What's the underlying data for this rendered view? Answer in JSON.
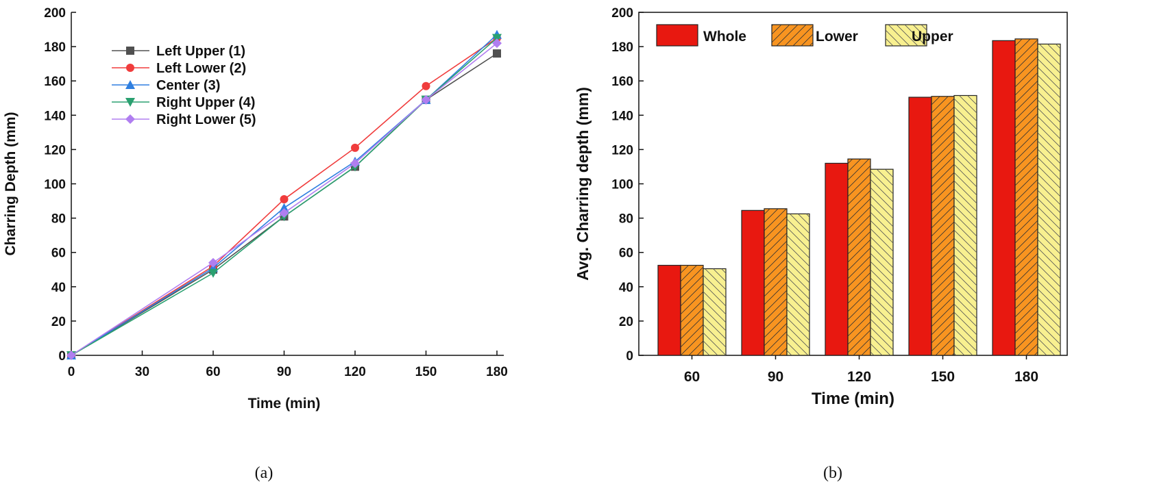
{
  "chart_data": [
    {
      "type": "line",
      "caption": "(a)",
      "xlabel": "Time (min)",
      "ylabel": "Charring Depth (mm)",
      "xlim": [
        0,
        180
      ],
      "ylim": [
        0,
        200
      ],
      "xticks": [
        0,
        30,
        60,
        90,
        120,
        150,
        180
      ],
      "yticks": [
        0,
        20,
        40,
        60,
        80,
        100,
        120,
        140,
        160,
        180,
        200
      ],
      "legend_position": "top-left",
      "x": [
        0,
        60,
        90,
        120,
        150,
        180
      ],
      "series": [
        {
          "name": "Left Upper (1)",
          "color": "#505050",
          "marker": "square",
          "values": [
            0,
            50,
            81,
            110,
            149,
            176
          ]
        },
        {
          "name": "Left  Lower (2)",
          "color": "#f03c3c",
          "marker": "circle",
          "values": [
            0,
            52,
            91,
            121,
            157,
            185
          ]
        },
        {
          "name": "Center (3)",
          "color": "#2f7fe0",
          "marker": "triangle-up",
          "values": [
            0,
            51,
            86,
            113,
            149,
            187
          ]
        },
        {
          "name": "Right Upper (4)",
          "color": "#2aa070",
          "marker": "triangle-down",
          "values": [
            0,
            48,
            81,
            110,
            149,
            185
          ]
        },
        {
          "name": "Right Lower (5)",
          "color": "#b07ef0",
          "marker": "diamond",
          "values": [
            0,
            54,
            83,
            112,
            149,
            182
          ]
        }
      ]
    },
    {
      "type": "bar",
      "caption": "(b)",
      "xlabel": "Time (min)",
      "ylabel": "Avg. Charring depth (mm)",
      "ylim": [
        0,
        200
      ],
      "yticks": [
        0,
        20,
        40,
        60,
        80,
        100,
        120,
        140,
        160,
        180,
        200
      ],
      "legend_position": "top-left",
      "categories": [
        "60",
        "90",
        "120",
        "150",
        "180"
      ],
      "series": [
        {
          "name": "Whole",
          "color": "#e81810",
          "hatch": "none",
          "values": [
            52.5,
            84.5,
            112,
            150.5,
            183.5
          ]
        },
        {
          "name": "Lower",
          "color": "#f89420",
          "hatch": "forward",
          "values": [
            52.5,
            85.5,
            114.5,
            151,
            184.5
          ]
        },
        {
          "name": "Upper",
          "color": "#f8f090",
          "hatch": "back",
          "values": [
            50.5,
            82.5,
            108.5,
            151.5,
            181.5
          ]
        }
      ]
    }
  ]
}
